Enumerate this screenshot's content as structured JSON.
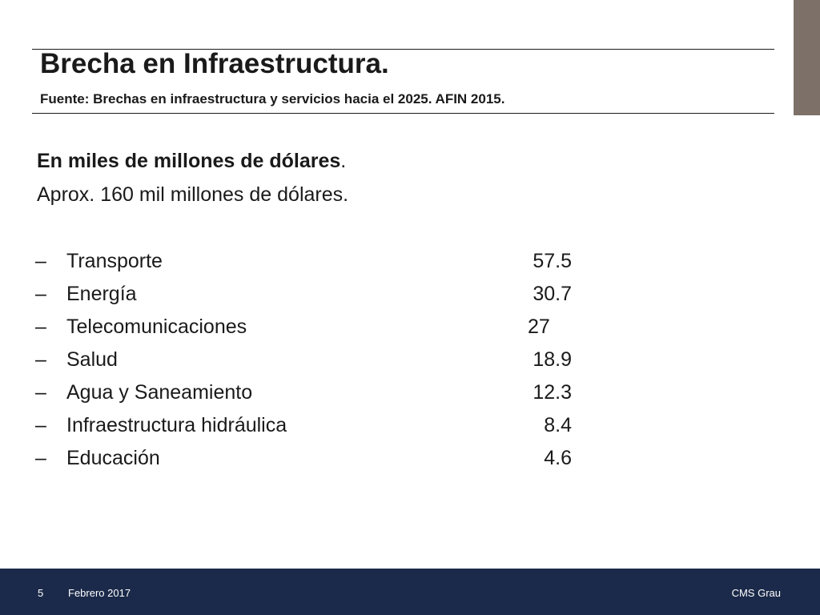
{
  "slide": {
    "title": "Brecha en Infraestructura.",
    "subtitle": "Fuente: Brechas en infraestructura y servicios hacia el 2025. AFIN 2015.",
    "unit_bold": "En miles de millones de dólares",
    "unit_suffix": ".",
    "approx_total": "Aprox. 160 mil millones de dólares.",
    "bullet_symbol": "–",
    "sectors": [
      {
        "name": "Transporte",
        "value": "57.5"
      },
      {
        "name": "Energía",
        "value": "30.7"
      },
      {
        "name": "Telecomunicaciones",
        "value": "27"
      },
      {
        "name": "Salud",
        "value": "18.9"
      },
      {
        "name": "Agua y Saneamiento",
        "value": "12.3"
      },
      {
        "name": "Infraestructura hidráulica",
        "value": "8.4"
      },
      {
        "name": "Educación",
        "value": "4.6"
      }
    ]
  },
  "footer": {
    "page_number": "5",
    "date": "Febrero 2017",
    "brand": "CMS Grau"
  },
  "colors": {
    "footer_background": "#1b2a4a",
    "corner_accent": "#7d7068",
    "text": "#1a1a1a"
  }
}
